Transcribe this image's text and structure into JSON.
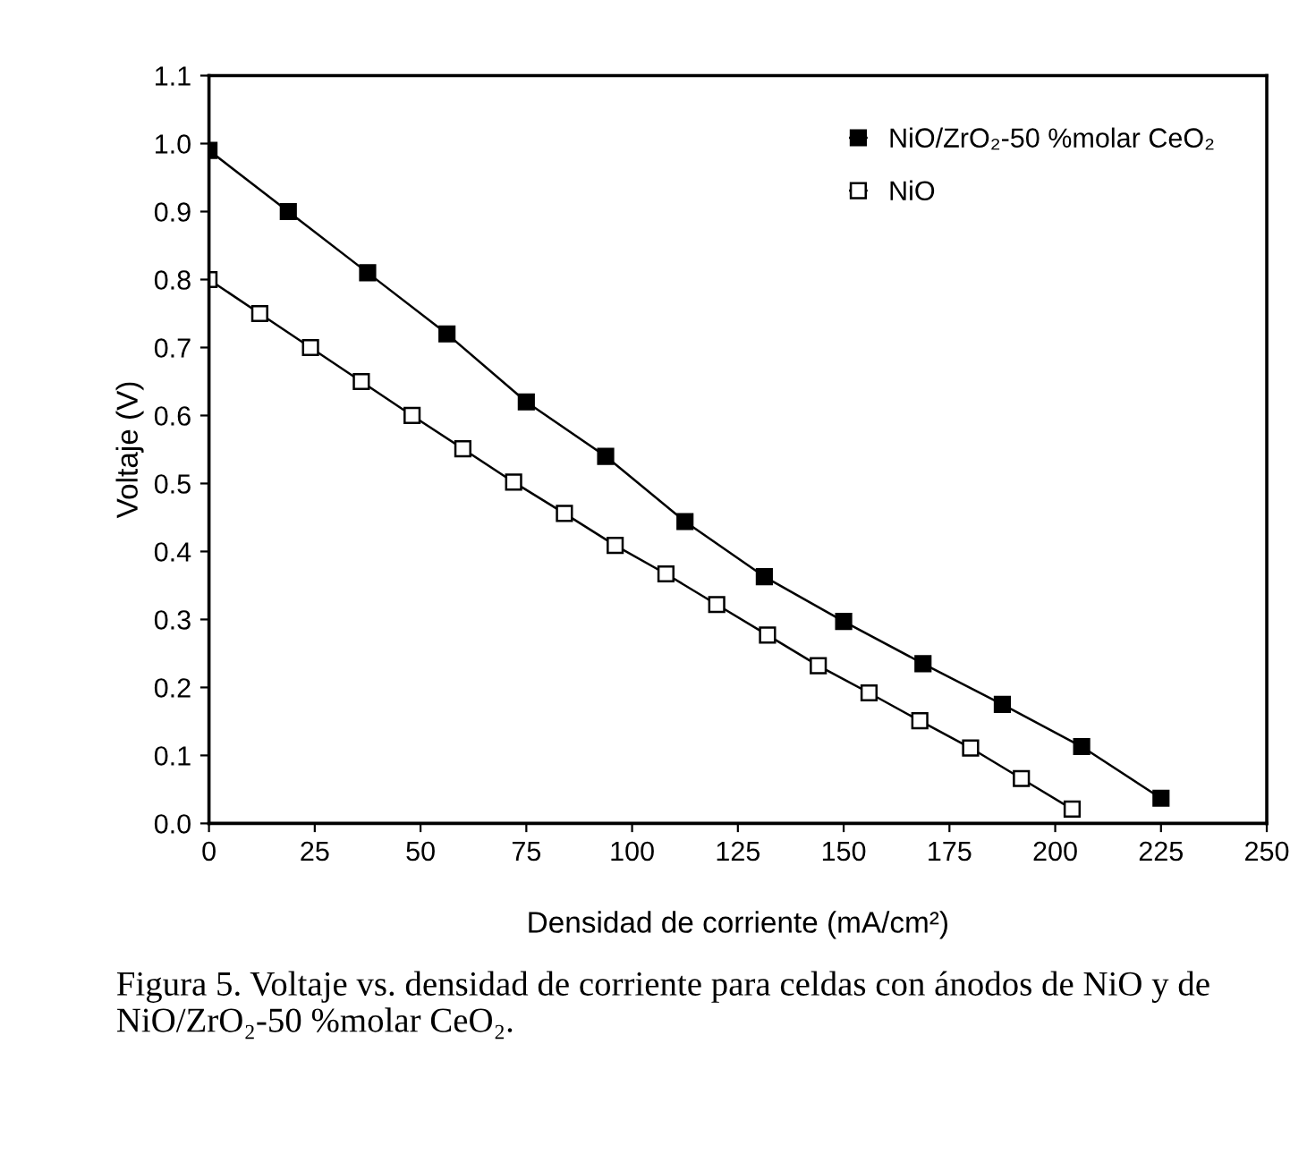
{
  "chart_data": {
    "type": "line",
    "xlabel": "Densidad de corriente (mA/cm²)",
    "ylabel": "Voltaje (V)",
    "xlim": [
      0,
      250
    ],
    "xticks": [
      0,
      25,
      50,
      75,
      100,
      125,
      150,
      175,
      200,
      225,
      250
    ],
    "ylim": [
      0,
      1.1
    ],
    "yticks": [
      {
        "value": 0,
        "label": "0.0"
      },
      {
        "value": 0.1,
        "label": "0.1"
      },
      {
        "value": 0.2,
        "label": "0.2"
      },
      {
        "value": 0.3,
        "label": "0.3"
      },
      {
        "value": 0.4,
        "label": "0.4"
      },
      {
        "value": 0.5,
        "label": "0.5"
      },
      {
        "value": 0.6,
        "label": "0.6"
      },
      {
        "value": 0.7,
        "label": "0.7"
      },
      {
        "value": 0.8,
        "label": "0.8"
      },
      {
        "value": 0.9,
        "label": "0.9"
      },
      {
        "value": 1.0,
        "label": "1.0"
      },
      {
        "value": 1.1,
        "label": "1.1"
      }
    ],
    "grid": false,
    "legend": "top right",
    "marker": "square",
    "line_style": "solid",
    "series": [
      {
        "name": "NiO/ZrO₂-50 %molar CeO₂",
        "color": "#000000",
        "x": [
          0,
          18.75,
          37.5,
          56.25,
          75,
          93.75,
          112.5,
          131.25,
          150,
          168.75,
          187.5,
          206.25,
          225
        ],
        "values": [
          0.99,
          0.9,
          0.81,
          0.72,
          0.62,
          0.54,
          0.444,
          0.363,
          0.297,
          0.235,
          0.175,
          0.113,
          0.037
        ]
      },
      {
        "name": "NiO",
        "color": "#000000",
        "x": [
          0,
          12,
          24,
          36,
          48,
          60,
          72,
          84,
          96,
          108,
          120,
          132,
          144,
          156,
          168,
          180,
          192,
          204
        ],
        "values": [
          0.8,
          0.75,
          0.7,
          0.65,
          0.6,
          0.551,
          0.502,
          0.456,
          0.409,
          0.367,
          0.322,
          0.277,
          0.232,
          0.192,
          0.151,
          0.111,
          0.066,
          0.021
        ]
      }
    ],
    "annotations": [
      "Figura 5. Voltaje vs. densidad de corriente para celdas con ánodos de NiO y de NiO/ZrO₂-50 %molar CeO₂."
    ]
  }
}
